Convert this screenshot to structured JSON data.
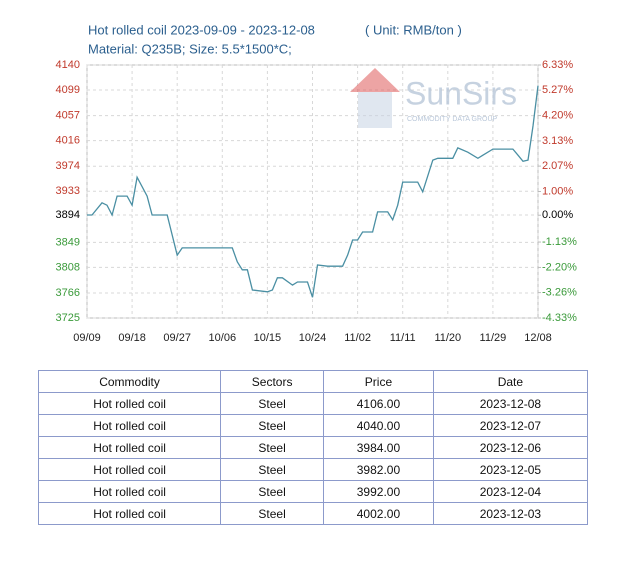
{
  "chart_data": {
    "type": "line",
    "title": "Hot rolled coil 2023-09-09 - 2023-12-08",
    "unit": "( Unit: RMB/ton )",
    "subtitle": "Material: Q235B; Size: 5.5*1500*C;",
    "watermark": {
      "name": "SunSirs",
      "tagline": "COMMODITY DATA GROUP"
    },
    "x": [
      "09/09",
      "09/10",
      "09/12",
      "09/13",
      "09/14",
      "09/15",
      "09/17",
      "09/18",
      "09/19",
      "09/21",
      "09/22",
      "09/25",
      "09/27",
      "09/28",
      "10/08",
      "10/09",
      "10/10",
      "10/11",
      "10/12",
      "10/15",
      "10/16",
      "10/17",
      "10/18",
      "10/20",
      "10/21",
      "10/23",
      "10/24",
      "10/25",
      "10/27",
      "10/30",
      "10/31",
      "11/01",
      "11/02",
      "11/03",
      "11/05",
      "11/06",
      "11/08",
      "11/09",
      "11/10",
      "11/11",
      "11/14",
      "11/15",
      "11/17",
      "11/18",
      "11/21",
      "11/22",
      "11/24",
      "11/26",
      "11/27",
      "11/29",
      "12/03",
      "12/04",
      "12/05",
      "12/06",
      "12/07",
      "12/08"
    ],
    "series": [
      {
        "name": "Hot rolled coil",
        "color": "#4a8fa3",
        "values": [
          3894,
          3894,
          3914,
          3910,
          3894,
          3925,
          3925,
          3910,
          3956,
          3925,
          3894,
          3894,
          3828,
          3840,
          3840,
          3817,
          3804,
          3804,
          3771,
          3768,
          3771,
          3791,
          3791,
          3779,
          3784,
          3784,
          3759,
          3812,
          3810,
          3810,
          3828,
          3853,
          3853,
          3866,
          3866,
          3899,
          3899,
          3886,
          3910,
          3948,
          3948,
          3932,
          3984,
          3987,
          3987,
          4004,
          3997,
          3987,
          3992,
          4002,
          4002,
          3992,
          3982,
          3984,
          4040,
          4106
        ]
      }
    ],
    "xticks": [
      "09/09",
      "09/18",
      "09/27",
      "10/06",
      "10/15",
      "10/24",
      "11/02",
      "11/11",
      "11/20",
      "11/29",
      "12/08"
    ],
    "ylim": [
      3725,
      4140
    ],
    "yticks": [
      4140,
      4099,
      4057,
      4016,
      3974,
      3933,
      3894,
      3849,
      3808,
      3766,
      3725
    ],
    "y2lim": [
      -4.33,
      6.33
    ],
    "y2ticks": [
      {
        "value": 6.33,
        "label": "6.33%"
      },
      {
        "value": 5.27,
        "label": "5.27%"
      },
      {
        "value": 4.2,
        "label": "4.20%"
      },
      {
        "value": 3.13,
        "label": "3.13%"
      },
      {
        "value": 2.07,
        "label": "2.07%"
      },
      {
        "value": 1.0,
        "label": "1.00%"
      },
      {
        "value": 0,
        "label": "0.00%"
      },
      {
        "value": -1.13,
        "label": "-1.13%"
      },
      {
        "value": -2.2,
        "label": "-2.20%"
      },
      {
        "value": -3.26,
        "label": "-3.26%"
      },
      {
        "value": -4.33,
        "label": "-4.33%"
      }
    ],
    "grid": true,
    "up_color": "#c0392b",
    "down_color": "#3a9a3a",
    "flat_color": "#000000"
  },
  "table": {
    "header": [
      "Commodity",
      "Sectors",
      "Price",
      "Date"
    ],
    "rows": [
      [
        "Hot rolled coil",
        "Steel",
        "4106.00",
        "2023-12-08"
      ],
      [
        "Hot rolled coil",
        "Steel",
        "4040.00",
        "2023-12-07"
      ],
      [
        "Hot rolled coil",
        "Steel",
        "3984.00",
        "2023-12-06"
      ],
      [
        "Hot rolled coil",
        "Steel",
        "3982.00",
        "2023-12-05"
      ],
      [
        "Hot rolled coil",
        "Steel",
        "3992.00",
        "2023-12-04"
      ],
      [
        "Hot rolled coil",
        "Steel",
        "4002.00",
        "2023-12-03"
      ]
    ]
  }
}
